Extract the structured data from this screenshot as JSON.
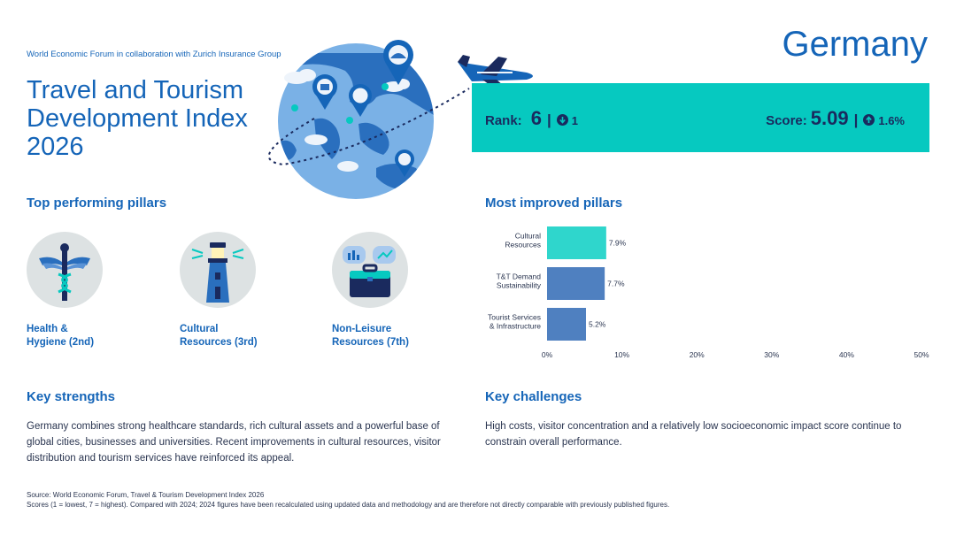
{
  "byline": "World Economic Forum in collaboration with Zurich Insurance Group",
  "title": "Travel and Tourism Development Index 2026",
  "country": "Germany",
  "rank": {
    "label": "Rank:",
    "value": "6",
    "sep": "|",
    "change": "1",
    "direction": "down"
  },
  "score": {
    "label": "Score:",
    "value": "5.09",
    "sep": "|",
    "change": "1.6%",
    "direction": "up"
  },
  "colors": {
    "accent": "#1565b8",
    "teal": "#06c9c0",
    "navy": "#1a2a5e",
    "bar_teal": "#2fd6cc",
    "bar_blue": "#4f80c0"
  },
  "top_pillars": {
    "title": "Top performing pillars",
    "items": [
      {
        "label_line1": "Health &",
        "label_line2": "Hygiene (2nd)",
        "icon": "caduceus-icon"
      },
      {
        "label_line1": "Cultural",
        "label_line2": "Resources (3rd)",
        "icon": "lighthouse-icon"
      },
      {
        "label_line1": "Non-Leisure",
        "label_line2": "Resources (7th)",
        "icon": "briefcase-icon"
      }
    ]
  },
  "improved": {
    "title": "Most improved pillars"
  },
  "chart_data": {
    "type": "bar",
    "orientation": "horizontal",
    "categories": [
      [
        "Cultural",
        "Resources"
      ],
      [
        "T&T Demand",
        "Sustainability"
      ],
      [
        "Tourist Services",
        "& Infrastructure"
      ]
    ],
    "values": [
      7.9,
      7.7,
      5.2
    ],
    "value_labels": [
      "7.9%",
      "7.7%",
      "5.2%"
    ],
    "bar_colors": [
      "#2fd6cc",
      "#4f80c0",
      "#4f80c0"
    ],
    "xlim": [
      0,
      50
    ],
    "xticks": [
      "0%",
      "10%",
      "20%",
      "30%",
      "40%",
      "50%"
    ],
    "grid": false
  },
  "strengths": {
    "title": "Key strengths",
    "text": "Germany combines strong healthcare standards, rich cultural assets and a powerful base of global cities, businesses and universities. Recent improvements in cultural resources, visitor distribution and tourism services have reinforced its appeal."
  },
  "challenges": {
    "title": "Key challenges",
    "text": "High costs, visitor concentration and a relatively low socioeconomic impact score continue to constrain overall performance."
  },
  "footer": {
    "line1": "Source: World Economic Forum, Travel & Tourism Development Index 2026",
    "line2": "Scores (1 = lowest, 7 = highest). Compared with 2024; 2024 figures have been recalculated using updated data and methodology and are therefore not directly comparable with previously published figures."
  }
}
